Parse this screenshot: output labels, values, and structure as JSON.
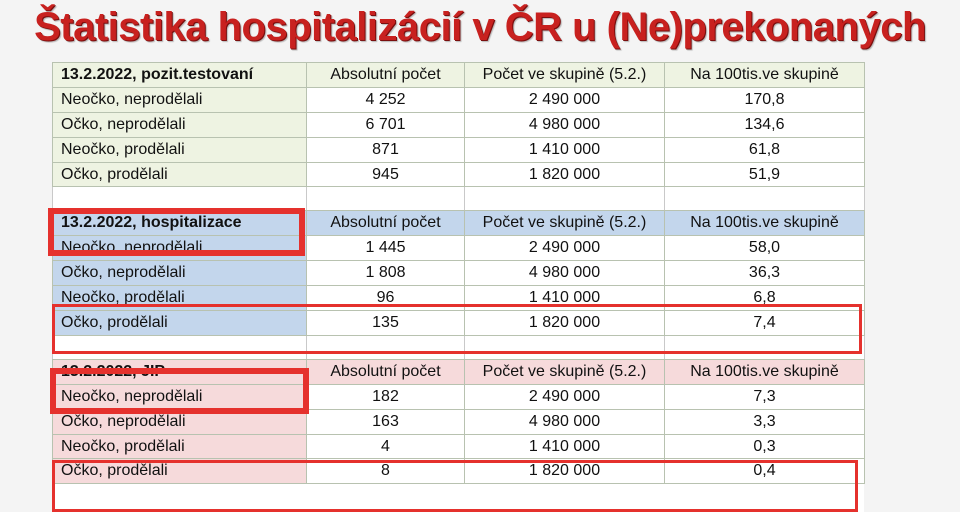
{
  "title": "Štatistika hospitalizácií v ČR u (Ne)prekonaných",
  "columns": [
    "Absolutní počet",
    "Počet ve skupině (5.2.)",
    "Na 100tis.ve skupině"
  ],
  "sections": [
    {
      "label": "13.2.2022, pozit.testovaní",
      "rows": [
        [
          "Neočko, neprodělali",
          "4 252",
          "2 490 000",
          "170,8"
        ],
        [
          "Očko, neprodělali",
          "6 701",
          "4 980 000",
          "134,6"
        ],
        [
          "Neočko, prodělali",
          "871",
          "1 410 000",
          "61,8"
        ],
        [
          "Očko, prodělali",
          "945",
          "1 820 000",
          "51,9"
        ]
      ]
    },
    {
      "label": "13.2.2022, hospitalizace",
      "rows": [
        [
          "Neočko, neprodělali",
          "1 445",
          "2 490 000",
          "58,0"
        ],
        [
          "Očko, neprodělali",
          "1 808",
          "4 980 000",
          "36,3"
        ],
        [
          "Neočko, prodělali",
          "96",
          "1 410 000",
          "6,8"
        ],
        [
          "Očko, prodělali",
          "135",
          "1 820 000",
          "7,4"
        ]
      ]
    },
    {
      "label": "13.2.2022, JIP",
      "rows": [
        [
          "Neočko, neprodělali",
          "182",
          "2 490 000",
          "7,3"
        ],
        [
          "Očko, neprodělali",
          "163",
          "4 980 000",
          "3,3"
        ],
        [
          "Neočko, prodělali",
          "4",
          "1 410 000",
          "0,3"
        ],
        [
          "Očko, prodělali",
          "8",
          "1 820 000",
          "0,4"
        ]
      ]
    }
  ],
  "colors": {
    "title": "#c8211f",
    "highlight_box": "#e5312d",
    "section1_bg": "#eef3e2",
    "section2_bg": "#c3d6ec",
    "section3_bg": "#f6dadb"
  }
}
